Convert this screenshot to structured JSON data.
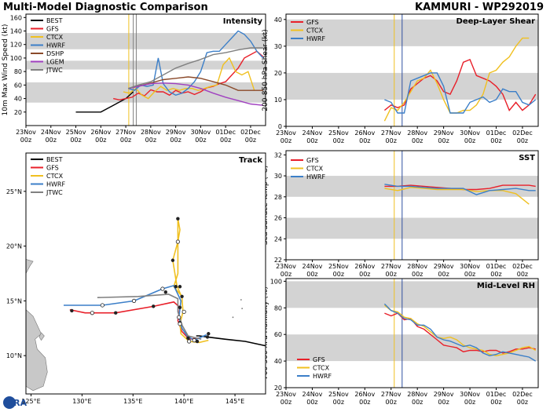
{
  "header": {
    "left_title": "Multi-Model Diagnostic Comparison",
    "right_title": "KAMMURI - WP292019",
    "logo_text": "CIRA"
  },
  "colors": {
    "BEST": "#000000",
    "GFS": "#e8202a",
    "CTCX": "#f0c020",
    "HWRF": "#3c7fc8",
    "DSHP": "#8b4a2a",
    "LGEM": "#a040c0",
    "JTWC": "#808080",
    "band": "#d3d3d3",
    "land": "#c8c8c8",
    "vline_a": "#f0c020",
    "vline_b": "#3050a0"
  },
  "time_axis": {
    "labels": [
      "23Nov 00z",
      "24Nov 00z",
      "25Nov 00z",
      "26Nov 00z",
      "27Nov 00z",
      "28Nov 00z",
      "29Nov 00z",
      "30Nov 00z",
      "01Dec 00z",
      "02Dec 00z"
    ],
    "xlim": [
      0,
      9.6
    ]
  },
  "chart_data": [
    {
      "id": "intensity",
      "type": "line",
      "title": "Intensity",
      "ylabel": "10m Max Wind Speed (kt)",
      "ylim": [
        0,
        165
      ],
      "yticks": [
        20,
        40,
        60,
        80,
        100,
        120,
        140,
        160
      ],
      "bands": [
        [
          34,
          64
        ],
        [
          83,
          96
        ],
        [
          113,
          137
        ]
      ],
      "vlines": [
        {
          "x": 4.12,
          "color": "vline_a"
        },
        {
          "x": 4.3,
          "color": "JTWC"
        },
        {
          "x": 4.42,
          "color": "JTWC"
        }
      ],
      "legend": [
        "BEST",
        "GFS",
        "CTCX",
        "HWRF",
        "DSHP",
        "LGEM",
        "JTWC"
      ],
      "series": [
        {
          "name": "BEST",
          "x": [
            2,
            2.5,
            3,
            3.5,
            4,
            4.3
          ],
          "y": [
            20,
            20,
            20,
            30,
            40,
            50
          ]
        },
        {
          "name": "GFS",
          "x": [
            3.5,
            3.75,
            4,
            4.25,
            4.5,
            4.75,
            5,
            5.25,
            5.5,
            5.75,
            6,
            6.25,
            6.5,
            6.75,
            7,
            7.25,
            7.5,
            7.75,
            8,
            8.25,
            8.5,
            8.75,
            9,
            9.25,
            9.5
          ],
          "y": [
            40,
            38,
            40,
            42,
            48,
            44,
            53,
            50,
            50,
            45,
            52,
            48,
            50,
            46,
            50,
            56,
            58,
            62,
            65,
            75,
            85,
            100,
            105,
            110,
            102
          ]
        },
        {
          "name": "CTCX",
          "x": [
            3.9,
            4.15,
            4.4,
            4.65,
            4.9,
            5.15,
            5.4,
            5.65,
            5.9,
            6.15,
            6.4,
            6.65,
            6.9,
            7.15,
            7.4,
            7.65,
            7.9,
            8.15,
            8.4,
            8.65,
            8.9,
            9.15
          ],
          "y": [
            50,
            48,
            55,
            45,
            40,
            50,
            58,
            52,
            55,
            52,
            55,
            55,
            52,
            55,
            58,
            60,
            90,
            100,
            80,
            75,
            80,
            52
          ]
        },
        {
          "name": "HWRF",
          "x": [
            4.1,
            4.35,
            4.6,
            4.85,
            5.1,
            5.3,
            5.5,
            5.75,
            6,
            6.25,
            6.5,
            6.75,
            7,
            7.25,
            7.5,
            7.75,
            8,
            8.25,
            8.5,
            8.75,
            9,
            9.25,
            9.5
          ],
          "y": [
            55,
            52,
            60,
            58,
            60,
            100,
            62,
            50,
            45,
            48,
            55,
            65,
            80,
            108,
            110,
            110,
            120,
            130,
            140,
            135,
            125,
            110,
            100
          ]
        },
        {
          "name": "DSHP",
          "x": [
            4.1,
            4.5,
            5,
            5.5,
            6,
            6.5,
            7,
            7.5,
            8,
            8.5,
            9,
            9.5
          ],
          "y": [
            55,
            58,
            63,
            68,
            70,
            72,
            70,
            65,
            60,
            52,
            52,
            52
          ]
        },
        {
          "name": "LGEM",
          "x": [
            4.1,
            4.5,
            5,
            5.5,
            6,
            6.5,
            7,
            7.5,
            8,
            8.5,
            9,
            9.5
          ],
          "y": [
            55,
            58,
            62,
            63,
            62,
            60,
            55,
            48,
            42,
            37,
            32,
            30
          ]
        },
        {
          "name": "JTWC",
          "x": [
            4.1,
            4.5,
            5,
            5.5,
            6,
            6.5,
            7,
            7.5,
            8,
            8.5,
            9,
            9.5
          ],
          "y": [
            55,
            60,
            65,
            75,
            85,
            92,
            98,
            105,
            108,
            112,
            115,
            115
          ]
        }
      ]
    },
    {
      "id": "shear",
      "type": "line",
      "title": "Deep-Layer Shear",
      "ylabel": "200-850 hPa Shear (kt)",
      "ylim": [
        0,
        42
      ],
      "yticks": [
        0,
        10,
        20,
        30,
        40
      ],
      "bands": [
        [
          10,
          20
        ],
        [
          30,
          40
        ]
      ],
      "vlines": [
        {
          "x": 4.12,
          "color": "vline_a"
        },
        {
          "x": 4.42,
          "color": "vline_b"
        }
      ],
      "legend": [
        "GFS",
        "CTCX",
        "HWRF"
      ],
      "series": [
        {
          "name": "GFS",
          "x": [
            3.75,
            4,
            4.25,
            4.5,
            4.75,
            5,
            5.25,
            5.5,
            5.75,
            6,
            6.25,
            6.5,
            6.75,
            7,
            7.25,
            7.5,
            7.75,
            8,
            8.25,
            8.5,
            8.75,
            9,
            9.25,
            9.5
          ],
          "y": [
            6,
            8,
            7,
            8,
            14,
            16,
            18,
            19,
            17,
            13,
            12,
            17,
            24,
            25,
            19,
            18,
            17,
            15,
            12,
            6,
            9,
            6,
            8,
            12
          ]
        },
        {
          "name": "CTCX",
          "x": [
            3.75,
            4,
            4.25,
            4.5,
            4.75,
            5,
            5.25,
            5.5,
            5.75,
            6,
            6.25,
            6.5,
            6.75,
            7,
            7.25,
            7.5,
            7.75,
            8,
            8.25,
            8.5,
            8.75,
            9,
            9.25
          ],
          "y": [
            2,
            7,
            6,
            9,
            13,
            17,
            18,
            21,
            16,
            10,
            5,
            5,
            6,
            6,
            8,
            12,
            20,
            21,
            24,
            26,
            30,
            33,
            33
          ]
        },
        {
          "name": "HWRF",
          "x": [
            3.75,
            4,
            4.25,
            4.5,
            4.75,
            5,
            5.25,
            5.5,
            5.75,
            6,
            6.25,
            6.5,
            6.75,
            7,
            7.25,
            7.5,
            7.75,
            8,
            8.25,
            8.5,
            8.75,
            9,
            9.25,
            9.5
          ],
          "y": [
            10,
            9,
            5,
            5,
            17,
            18,
            19,
            20,
            20,
            15,
            5,
            5,
            5,
            9,
            10,
            11,
            9,
            10,
            14,
            13,
            13,
            9,
            8,
            10
          ]
        }
      ]
    },
    {
      "id": "sst",
      "type": "line",
      "title": "SST",
      "ylabel": "Sea Surface Temp (°C)",
      "ylim": [
        22,
        32.4
      ],
      "yticks": [
        22,
        24,
        26,
        28,
        30,
        32
      ],
      "bands": [
        [
          24,
          26
        ],
        [
          28,
          30
        ]
      ],
      "vlines": [
        {
          "x": 4.12,
          "color": "vline_a"
        },
        {
          "x": 4.42,
          "color": "vline_b"
        }
      ],
      "legend": [
        "GFS",
        "CTCX",
        "HWRF"
      ],
      "series": [
        {
          "name": "GFS",
          "x": [
            3.75,
            4.25,
            4.75,
            5.25,
            5.75,
            6.25,
            6.75,
            7.25,
            7.75,
            8.25,
            8.75,
            9.25,
            9.5
          ],
          "y": [
            29.0,
            29.0,
            29.1,
            29.0,
            28.9,
            28.8,
            28.7,
            28.7,
            28.8,
            29.1,
            29.1,
            29.1,
            29.0
          ]
        },
        {
          "name": "CTCX",
          "x": [
            3.75,
            4.25,
            4.75,
            5.25,
            5.75,
            6.25,
            6.75,
            7.25,
            7.75,
            8.25,
            8.75,
            9.25
          ],
          "y": [
            28.8,
            28.6,
            28.9,
            28.8,
            28.7,
            28.7,
            28.7,
            28.5,
            28.6,
            28.6,
            28.3,
            27.3
          ]
        },
        {
          "name": "HWRF",
          "x": [
            3.75,
            4.25,
            4.75,
            5.25,
            5.75,
            6.25,
            6.75,
            7.25,
            7.75,
            8.25,
            8.75,
            9.25,
            9.5
          ],
          "y": [
            29.2,
            29.0,
            29.0,
            28.9,
            28.8,
            28.8,
            28.8,
            28.2,
            28.6,
            28.7,
            28.8,
            28.6,
            28.6
          ]
        }
      ]
    },
    {
      "id": "rh",
      "type": "line",
      "title": "Mid-Level RH",
      "ylabel": "700-500 hPa Humidity (%)",
      "ylim": [
        20,
        102
      ],
      "yticks": [
        20,
        40,
        60,
        80,
        100
      ],
      "bands": [
        [
          40,
          60
        ],
        [
          80,
          100
        ]
      ],
      "vlines": [
        {
          "x": 4.12,
          "color": "vline_a"
        },
        {
          "x": 4.42,
          "color": "vline_b"
        }
      ],
      "legend": [
        "GFS",
        "CTCX",
        "HWRF"
      ],
      "series": [
        {
          "name": "GFS",
          "x": [
            3.75,
            4,
            4.25,
            4.5,
            4.75,
            5,
            5.25,
            5.5,
            5.75,
            6,
            6.25,
            6.5,
            6.75,
            7,
            7.25,
            7.5,
            7.75,
            8,
            8.25,
            8.5,
            8.75,
            9,
            9.25,
            9.5
          ],
          "y": [
            76,
            74,
            76,
            71,
            72,
            66,
            64,
            60,
            56,
            52,
            51,
            50,
            47,
            48,
            48,
            47,
            48,
            48,
            46,
            47,
            49,
            49,
            50,
            49
          ]
        },
        {
          "name": "CTCX",
          "x": [
            3.75,
            4,
            4.25,
            4.5,
            4.75,
            5,
            5.25,
            5.5,
            5.75,
            6,
            6.25,
            6.5,
            6.75,
            7,
            7.25,
            7.5,
            7.75,
            8,
            8.25,
            8.5,
            8.75,
            9,
            9.25,
            9.5
          ],
          "y": [
            82,
            78,
            77,
            73,
            72,
            68,
            66,
            62,
            58,
            57,
            58,
            56,
            52,
            50,
            49,
            48,
            45,
            44,
            45,
            46,
            48,
            50,
            51,
            48
          ]
        },
        {
          "name": "HWRF",
          "x": [
            3.75,
            4,
            4.25,
            4.5,
            4.75,
            5,
            5.25,
            5.5,
            5.75,
            6,
            6.25,
            6.5,
            6.75,
            7,
            7.25,
            7.5,
            7.75,
            8,
            8.25,
            8.5,
            8.75,
            9,
            9.25,
            9.5
          ],
          "y": [
            83,
            78,
            76,
            72,
            71,
            67,
            67,
            64,
            58,
            56,
            55,
            53,
            51,
            52,
            50,
            46,
            44,
            45,
            47,
            46,
            45,
            44,
            43,
            40
          ]
        }
      ]
    },
    {
      "id": "track",
      "type": "line",
      "title": "Track",
      "xlim": [
        124.5,
        148
      ],
      "ylim": [
        6.5,
        28.5
      ],
      "xticks": [
        125,
        130,
        135,
        140,
        145
      ],
      "xticklabels": [
        "125°E",
        "130°E",
        "135°E",
        "140°E",
        "145°E"
      ],
      "yticks": [
        10,
        15,
        20,
        25
      ],
      "yticklabels": [
        "10°N",
        "15°N",
        "20°N",
        "25°N"
      ],
      "legend": [
        "BEST",
        "GFS",
        "CTCX",
        "HWRF",
        "JTWC"
      ],
      "series": [
        {
          "name": "BEST",
          "lon": [
            148,
            146,
            144,
            142.3,
            141.5,
            141.2
          ],
          "lat": [
            10.9,
            11.3,
            11.5,
            11.7,
            11.8,
            11.8
          ]
        },
        {
          "name": "GFS",
          "lon": [
            141.5,
            140.5,
            139.8,
            139.4,
            139.6,
            139.0,
            137.0,
            133.3,
            130.3,
            128.8
          ],
          "lat": [
            11.6,
            11.5,
            12.2,
            13.2,
            14.4,
            14.9,
            14.5,
            13.9,
            13.9,
            14.2
          ]
        },
        {
          "name": "CTCX",
          "lon": [
            142.4,
            141.5,
            140.5,
            139.7,
            139.6,
            139.9,
            139.8,
            139.3,
            138.9,
            139.4,
            139.6,
            139.4,
            139.4,
            139.0,
            139.8
          ],
          "lat": [
            11.4,
            11.2,
            11.3,
            12.0,
            12.9,
            14.0,
            15.3,
            16.4,
            18.7,
            20.4,
            21.5,
            22.5,
            17.5,
            16.3,
            15.4
          ]
        },
        {
          "name": "HWRF",
          "lon": [
            142.2,
            141.0,
            140.3,
            139.8,
            139.5,
            139.7,
            139.0,
            137.9,
            135.1,
            132.0,
            128.2
          ],
          "lat": [
            11.9,
            11.4,
            11.8,
            12.5,
            13.5,
            15.0,
            16.4,
            16.1,
            15.0,
            14.6,
            14.6
          ]
        },
        {
          "name": "JTWC",
          "lon": [
            141.7,
            140.4,
            139.8,
            139.4,
            139.4,
            138.5,
            135.5,
            131.5
          ],
          "lat": [
            11.5,
            11.8,
            12.8,
            14.0,
            15.2,
            15.6,
            15.4,
            15.3
          ]
        }
      ],
      "markers_filled": [
        [
          139.4,
          22.5
        ],
        [
          138.9,
          18.7
        ],
        [
          139.6,
          16.3
        ],
        [
          139.8,
          15.4
        ],
        [
          139.2,
          16.3
        ],
        [
          139.6,
          14.4
        ],
        [
          137.0,
          14.5
        ],
        [
          133.3,
          13.9
        ],
        [
          129.0,
          14.1
        ],
        [
          138.2,
          15.8
        ],
        [
          139.6,
          13.0
        ],
        [
          140.4,
          11.6
        ],
        [
          141.3,
          11.3
        ],
        [
          142.3,
          11.7
        ],
        [
          142.4,
          12.0
        ]
      ],
      "markers_open": [
        [
          139.4,
          20.4
        ],
        [
          140.0,
          14.0
        ],
        [
          139.6,
          12.9
        ],
        [
          140.5,
          11.3
        ],
        [
          135.1,
          15.0
        ],
        [
          132.0,
          14.6
        ],
        [
          131.0,
          13.9
        ],
        [
          137.9,
          16.1
        ],
        [
          141.0,
          11.4
        ],
        [
          139.5,
          13.5
        ]
      ]
    }
  ]
}
